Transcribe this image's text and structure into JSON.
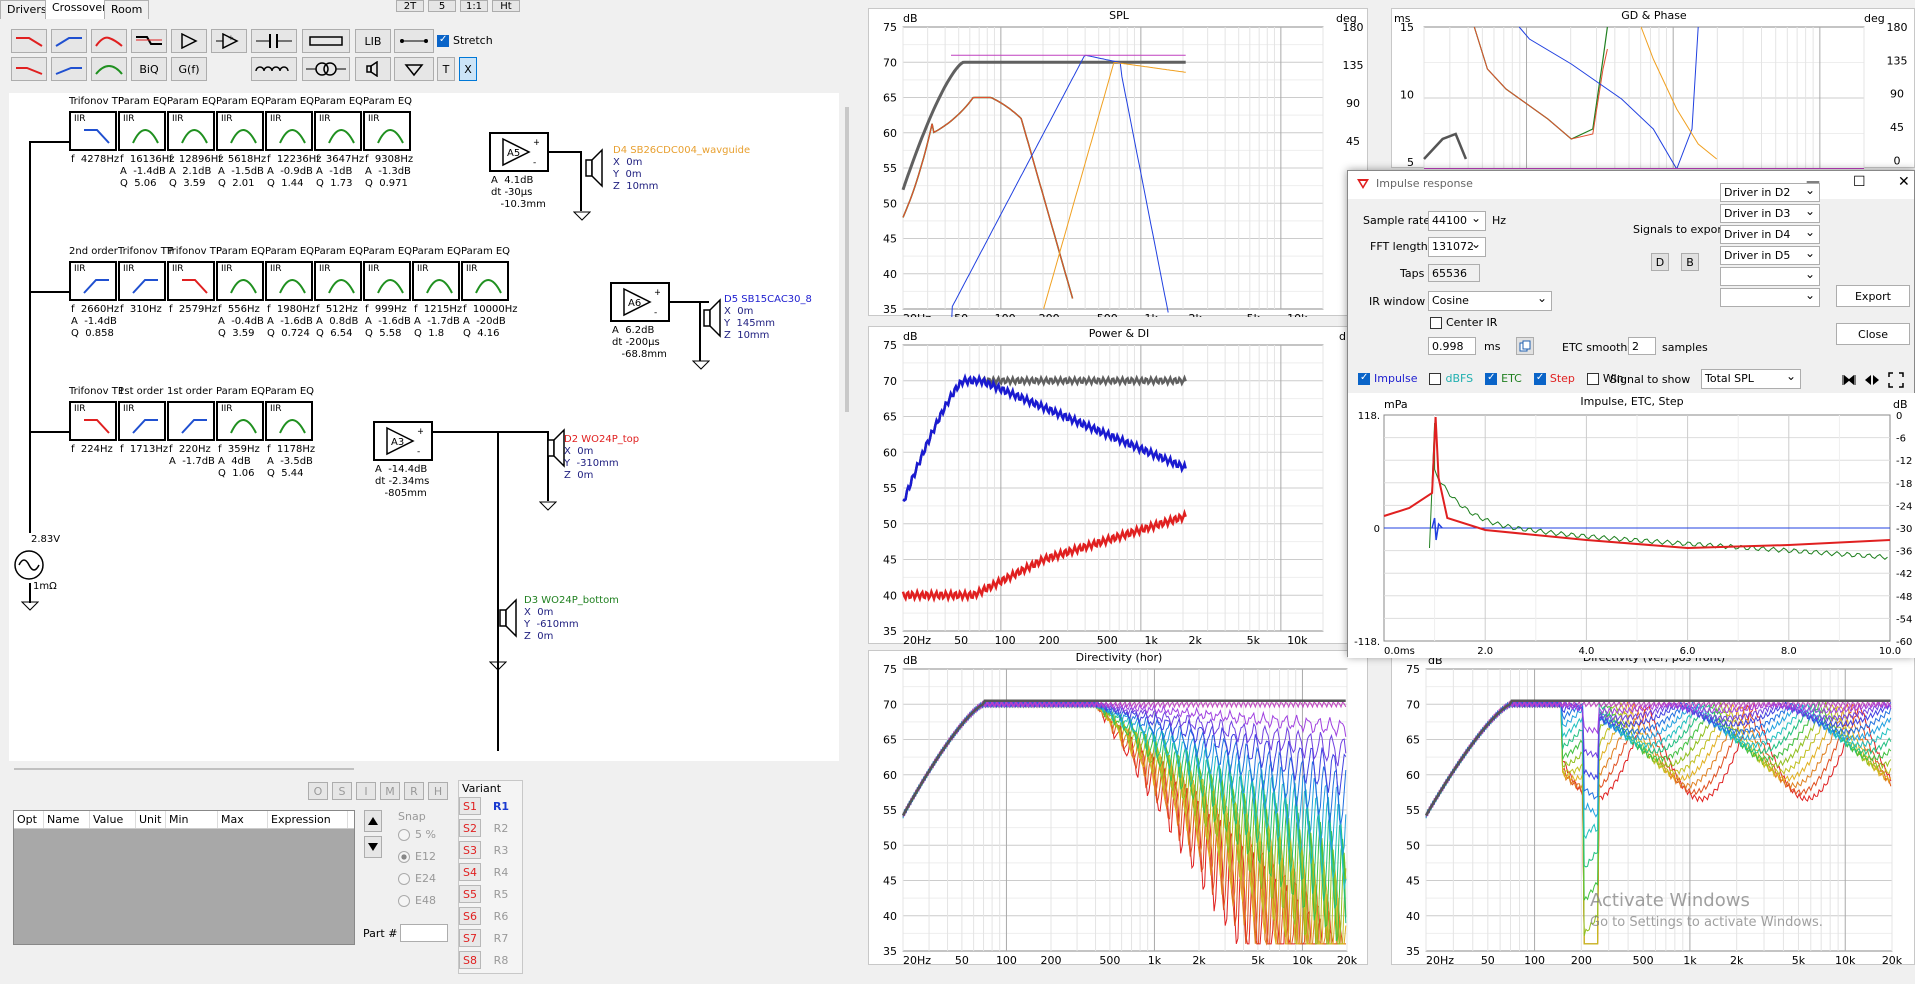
{
  "tabs": [
    "Drivers",
    "Crossover",
    "Room"
  ],
  "top_buttons": [
    "2T",
    "5",
    "1:1",
    "Ht"
  ],
  "toolbar": {
    "biq": "BiQ",
    "gf": "G(f)",
    "lib": "LIB",
    "t": "T",
    "x": "X",
    "stretch": "Stretch"
  },
  "crossover": {
    "row1": {
      "blocks": [
        {
          "title": "Trifonov TP",
          "type": "IIR",
          "kind": "lp",
          "params": "f  4278Hz"
        },
        {
          "title": "Param EQ",
          "type": "IIR",
          "kind": "peq",
          "params": "f  16136Hz\nA  -1.4dB\nQ  5.06"
        },
        {
          "title": "Param EQ",
          "type": "IIR",
          "kind": "peq",
          "params": "f  12896Hz\nA  2.1dB\nQ  3.59"
        },
        {
          "title": "Param EQ",
          "type": "IIR",
          "kind": "peq",
          "params": "f  5618Hz\nA  -1.5dB\nQ  2.01"
        },
        {
          "title": "Param EQ",
          "type": "IIR",
          "kind": "peq",
          "params": "f  12236Hz\nA  -0.9dB\nQ  1.44"
        },
        {
          "title": "Param EQ",
          "type": "IIR",
          "kind": "peq",
          "params": "f  3647Hz\nA  -1dB\nQ  1.73"
        },
        {
          "title": "Param EQ",
          "type": "IIR",
          "kind": "peq",
          "params": "f  9308Hz\nA  -1.3dB\nQ  0.971"
        }
      ],
      "amp": "A5",
      "amp_params": "A  4.1dB\ndt -30µs\n   -10.3mm",
      "driver": "D4 SB26CDC004_wavguide",
      "driver_pos": "X  0m\nY  0m\nZ  10mm",
      "color": "#e8a030"
    },
    "row2": {
      "blocks": [
        {
          "title": "2nd order",
          "type": "IIR",
          "kind": "hp",
          "params": "f  2660Hz\nA  -1.4dB\nQ  0.858"
        },
        {
          "title": "Trifonov TP",
          "type": "IIR",
          "kind": "hp",
          "params": "f  310Hz"
        },
        {
          "title": "Trifonov TP",
          "type": "IIR",
          "kind": "lpr",
          "params": "f  2579Hz"
        },
        {
          "title": "Param EQ",
          "type": "IIR",
          "kind": "peq",
          "params": "f  556Hz\nA  -0.4dB\nQ  3.59"
        },
        {
          "title": "Param EQ",
          "type": "IIR",
          "kind": "peq",
          "params": "f  1980Hz\nA  -1.6dB\nQ  0.724"
        },
        {
          "title": "Param EQ",
          "type": "IIR",
          "kind": "peq",
          "params": "f  512Hz\nA  0.8dB\nQ  6.54"
        },
        {
          "title": "Param EQ",
          "type": "IIR",
          "kind": "peq",
          "params": "f  999Hz\nA  -1.6dB\nQ  5.58"
        },
        {
          "title": "Param EQ",
          "type": "IIR",
          "kind": "peq",
          "params": "f  1215Hz\nA  -1.7dB\nQ  1.8"
        },
        {
          "title": "Param EQ",
          "type": "IIR",
          "kind": "peq",
          "params": "f  10000Hz\nA  -20dB\nQ  4.16"
        }
      ],
      "amp": "A6",
      "amp_params": "A  6.2dB\ndt -200µs\n   -68.8mm",
      "driver": "D5 SB15CAC30_8",
      "driver_pos": "X  0m\nY  145mm\nZ  10mm",
      "color": "#2020d0"
    },
    "row3": {
      "blocks": [
        {
          "title": "Trifonov TP",
          "type": "IIR",
          "kind": "lpr",
          "params": "f  224Hz"
        },
        {
          "title": "1st order",
          "type": "IIR",
          "kind": "hp",
          "params": "f  1713Hz"
        },
        {
          "title": "1st order",
          "type": "",
          "kind": "hp",
          "params": "f  220Hz\nA  -1.7dB"
        },
        {
          "title": "Param EQ",
          "type": "IIR",
          "kind": "peq",
          "params": "f  359Hz\nA  4dB\nQ  1.06"
        },
        {
          "title": "Param EQ",
          "type": "IIR",
          "kind": "peq",
          "params": "f  1178Hz\nA  -3.5dB\nQ  5.44"
        }
      ],
      "amp": "A3",
      "amp_params": "A  -14.4dB\ndt -2.34ms\n   -805mm",
      "driver": "D2 WO24P_top",
      "driver_pos": "X  0m\nY  -310mm\nZ  0m",
      "color": "#e02020"
    },
    "driver_d3": {
      "name": "D3 WO24P_bottom",
      "pos": "X  0m\nY  -610mm\nZ  0m",
      "color": "#208020"
    },
    "source": {
      "voltage": "2.83V",
      "impedance": "1mΩ"
    }
  },
  "opt_buttons": [
    "O",
    "S",
    "I",
    "M",
    "R",
    "H"
  ],
  "table_headers": [
    "Opt",
    "Name",
    "Value",
    "Unit",
    "Min",
    "Max",
    "Expression"
  ],
  "snap": {
    "label": "Snap",
    "options": [
      "5 %",
      "E12",
      "E24",
      "E48"
    ]
  },
  "part_label": "Part #",
  "variant": {
    "label": "Variant",
    "s": [
      "S1",
      "S2",
      "S3",
      "S4",
      "S5",
      "S6",
      "S7",
      "S8"
    ],
    "r": [
      "R1",
      "R2",
      "R3",
      "R4",
      "R5",
      "R6",
      "R7",
      "R8"
    ]
  },
  "charts": {
    "spl": {
      "title": "SPL",
      "ylab": "dB",
      "ylab2": "deg",
      "yticks": [
        "75",
        "70",
        "65",
        "60",
        "55",
        "50",
        "45",
        "40",
        "35"
      ],
      "y2ticks": [
        "180",
        "135",
        "90",
        "45",
        "0"
      ],
      "xticks": [
        "20Hz",
        "50",
        "100",
        "200",
        "500",
        "1k",
        "2k",
        "5k",
        "10k"
      ]
    },
    "gd": {
      "title": "GD & Phase",
      "ylab": "ms",
      "ylab2": "deg",
      "yticks": [
        "15",
        "10",
        "5"
      ],
      "y2ticks": [
        "180",
        "135",
        "90",
        "45",
        "0"
      ]
    },
    "power": {
      "title": "Power & DI",
      "ylab": "dB",
      "ylab2": "d",
      "yticks": [
        "75",
        "70",
        "65",
        "60",
        "55",
        "50",
        "45",
        "40",
        "35"
      ],
      "xticks": [
        "20Hz",
        "50",
        "100",
        "200",
        "500",
        "1k",
        "2k",
        "5k",
        "10k"
      ]
    },
    "dir_h": {
      "title": "Directivity (hor)",
      "ylab": "dB",
      "yticks": [
        "75",
        "70",
        "65",
        "60",
        "55",
        "50",
        "45",
        "40",
        "35"
      ],
      "xticks": [
        "20Hz",
        "50",
        "100",
        "200",
        "500",
        "1k",
        "2k",
        "5k",
        "10k",
        "20k"
      ]
    },
    "dir_v": {
      "title": "Directivity (ver, pos front)",
      "ylab": "dB",
      "yticks": [
        "75",
        "70",
        "65",
        "60",
        "55",
        "50",
        "45",
        "40",
        "35"
      ],
      "xticks": [
        "20Hz",
        "50",
        "100",
        "200",
        "500",
        "1k",
        "2k",
        "5k",
        "10k",
        "20k"
      ]
    }
  },
  "dialog": {
    "title": "Impulse response",
    "sample_rate_label": "Sample rate",
    "sample_rate": "44100",
    "hz": "Hz",
    "fft_label": "FFT length",
    "fft": "131072",
    "taps_label": "Taps",
    "taps": "65536",
    "ir_window_label": "IR window",
    "ir_window": "Cosine",
    "center_ir": "Center IR",
    "ms_value": "0.998",
    "ms": "ms",
    "etc_label": "ETC smooth",
    "etc_value": "2",
    "samples": "samples",
    "signals_label": "Signals to export",
    "d": "D",
    "b": "B",
    "signals": [
      "Driver in D2",
      "Driver in D3",
      "Driver in D4",
      "Driver in D5",
      "",
      ""
    ],
    "export": "Export",
    "close": "Close",
    "checks": [
      {
        "label": "Impulse",
        "on": true,
        "color": "#2020d0"
      },
      {
        "label": "dBFS",
        "on": false,
        "color": "#20b0b0"
      },
      {
        "label": "ETC",
        "on": true,
        "color": "#208020"
      },
      {
        "label": "Step",
        "on": true,
        "color": "#e02020"
      },
      {
        "label": "Win",
        "on": false,
        "color": "#000"
      }
    ],
    "signal_show_label": "Signal to show",
    "signal_show": "Total SPL",
    "chart_title": "Impulse, ETC, Step",
    "ylab": "mPa",
    "ylab2": "dB",
    "yticks": [
      "118.",
      "0",
      "-118."
    ],
    "y2ticks": [
      "0",
      "-6",
      "-12",
      "-18",
      "-24",
      "-30",
      "-36",
      "-42",
      "-48",
      "-54",
      "-60"
    ],
    "xticks": [
      "0.0ms",
      "2.0",
      "4.0",
      "6.0",
      "8.0",
      "10.0"
    ]
  },
  "watermark": {
    "line1": "Activate Windows",
    "line2": "Go to Settings to activate Windows."
  }
}
